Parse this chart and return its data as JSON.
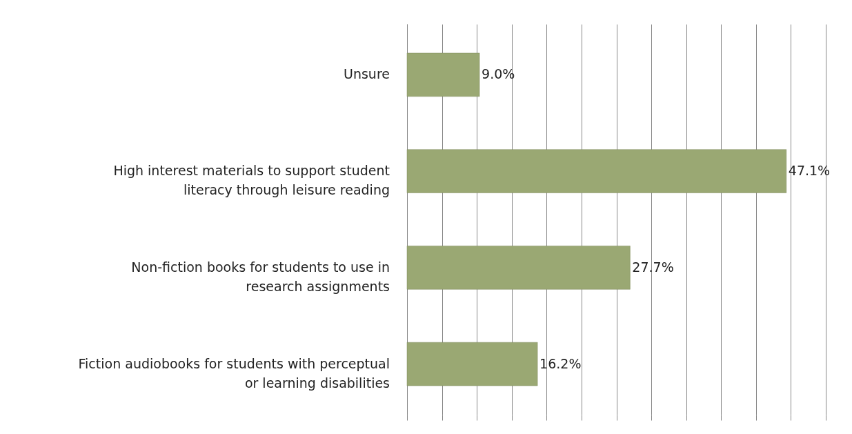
{
  "chart_data": {
    "type": "bar",
    "orientation": "horizontal",
    "categories": [
      "Unsure",
      "High interest materials to support student literacy through leisure reading",
      "Non-fiction books for students to use in research assignments",
      "Fiction audiobooks for students with perceptual or learning disabilities"
    ],
    "values": [
      9.0,
      47.1,
      27.7,
      16.2
    ],
    "value_labels": [
      "9.0%",
      "47.1%",
      "27.7%",
      "16.2%"
    ],
    "color": "#9aa873",
    "xlim": [
      0,
      52
    ],
    "xticks": [
      0,
      {
        "value": 4.333,
        "label": null
      },
      {
        "value": 8.667,
        "label": null
      },
      {
        "value": 13,
        "label": null
      },
      {
        "value": 17.333,
        "label": null
      },
      {
        "value": 21.667,
        "label": null
      },
      {
        "value": 26,
        "label": null
      },
      {
        "value": 30.333,
        "label": null
      },
      {
        "value": 34.667,
        "label": null
      },
      {
        "value": 39,
        "label": null
      },
      {
        "value": 43.333,
        "label": null
      },
      {
        "value": 47.667,
        "label": null
      },
      {
        "value": 52,
        "label": null
      }
    ],
    "grid": "x",
    "tick_labels": false
  }
}
